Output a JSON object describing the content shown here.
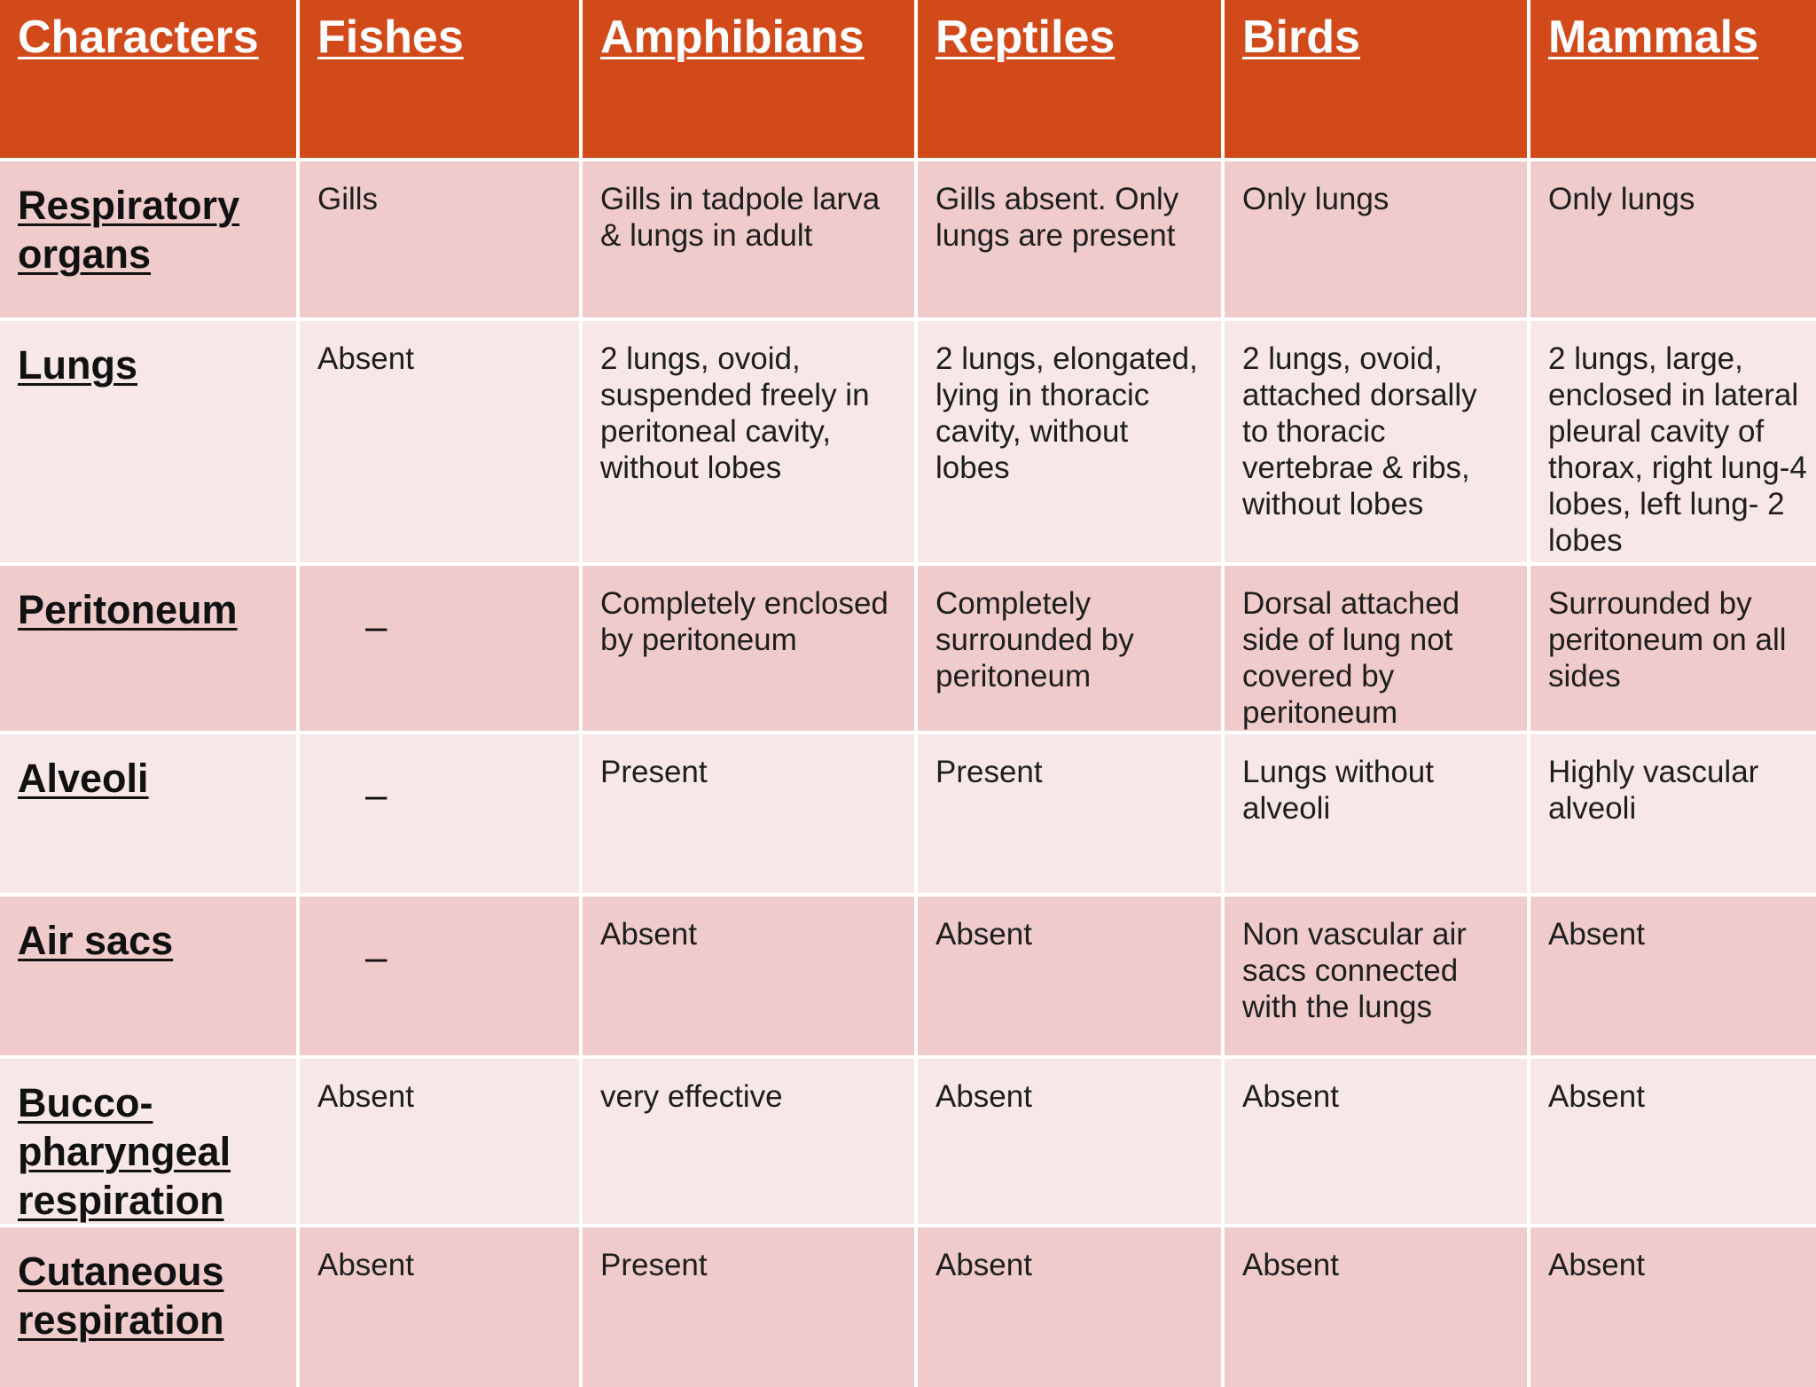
{
  "headers": [
    "Characters",
    "Fishes",
    "Amphibians",
    "Reptiles",
    "Birds",
    "Mammals"
  ],
  "rows": [
    {
      "label": "Respiratory organs",
      "cells": [
        "Gills",
        "Gills in tadpole larva & lungs in adult",
        "Gills absent. Only lungs are present",
        "Only lungs",
        "Only lungs"
      ]
    },
    {
      "label": "Lungs",
      "cells": [
        "Absent",
        "2 lungs, ovoid, suspended freely in peritoneal cavity, without lobes",
        "2 lungs, elongated, lying in thoracic cavity, without lobes",
        "2 lungs, ovoid, attached dorsally to thoracic vertebrae & ribs, without lobes",
        "2 lungs, large, enclosed in lateral pleural cavity of thorax, right lung-4 lobes, left lung- 2 lobes"
      ]
    },
    {
      "label": "Peritoneum",
      "cells": [
        "–",
        "Completely enclosed by peritoneum",
        "Completely surrounded by peritoneum",
        "Dorsal attached side of lung not covered by peritoneum",
        "Surrounded by peritoneum on all sides"
      ]
    },
    {
      "label": "Alveoli",
      "cells": [
        "–",
        "Present",
        "Present",
        "Lungs without alveoli",
        "Highly vascular alveoli"
      ]
    },
    {
      "label": "Air sacs",
      "cells": [
        "–",
        "Absent",
        "Absent",
        "Non vascular air sacs connected with the lungs",
        "Absent"
      ]
    },
    {
      "label": "Bucco-pharyngeal respiration",
      "cells": [
        "Absent",
        "very effective",
        "Absent",
        "Absent",
        "Absent"
      ]
    },
    {
      "label": "Cutaneous respiration",
      "cells": [
        "Absent",
        "Present",
        "Absent",
        "Absent",
        "Absent"
      ]
    }
  ]
}
